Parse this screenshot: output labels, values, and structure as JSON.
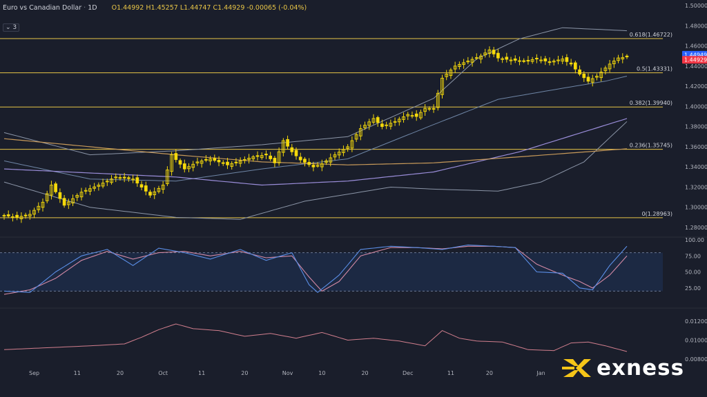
{
  "header": {
    "title": "Euro vs Canadian Dollar",
    "separator": "·",
    "timeframe": "1D",
    "open": "O1.44992",
    "high": "H1.45257",
    "low": "L1.44747",
    "close": "C1.44929",
    "change": "-0.00065 (-0.04%)",
    "indicator_toggle": "3"
  },
  "brand": {
    "name": "exness",
    "color": "#f5c518"
  },
  "colors": {
    "candle": "#f5d90a",
    "fib": "#e8c547",
    "bb": "#8c96a8",
    "ma_purple": "#9a8dd9",
    "ma_orange": "#c89a5a",
    "ma_slow": "#6f86a6",
    "stoch_k": "#5b8ee6",
    "stoch_d": "#d48aa5",
    "atr": "#d27f8e",
    "price_blue": "#2962ff",
    "price_red": "#f23645"
  },
  "chart_data": [
    {
      "type": "candlestick",
      "title": "Euro vs Canadian Dollar",
      "ylim": [
        1.28,
        1.5
      ],
      "y_ticks": [
        "1.50000",
        "1.48000",
        "1.46000",
        "1.44000",
        "1.42000",
        "1.40000",
        "1.38000",
        "1.36000",
        "1.34000",
        "1.32000",
        "1.30000",
        "1.28000"
      ],
      "x_ticks": [
        "Sep",
        "11",
        "20",
        "Oct",
        "11",
        "20",
        "Nov",
        "10",
        "20",
        "Dec",
        "11",
        "20",
        "Jan"
      ],
      "price_labels": [
        {
          "value": "1.44949",
          "color": "blue"
        },
        {
          "value": "1.44929",
          "color": "red"
        }
      ],
      "fib_levels": [
        {
          "label": "0.618(1.46722)",
          "value": 1.46722
        },
        {
          "label": "0.5(1.43331)",
          "value": 1.43331
        },
        {
          "label": "0.382(1.39940)",
          "value": 1.3994
        },
        {
          "label": "0.236(1.35745)",
          "value": 1.35745
        },
        {
          "label": "0(1.28963)",
          "value": 1.28963
        }
      ],
      "close_anchors": [
        [
          0,
          1.292
        ],
        [
          3,
          1.29
        ],
        [
          6,
          1.293
        ],
        [
          9,
          1.305
        ],
        [
          11,
          1.322
        ],
        [
          14,
          1.302
        ],
        [
          18,
          1.315
        ],
        [
          22,
          1.322
        ],
        [
          26,
          1.33
        ],
        [
          30,
          1.328
        ],
        [
          34,
          1.312
        ],
        [
          37,
          1.322
        ],
        [
          39,
          1.352
        ],
        [
          42,
          1.338
        ],
        [
          45,
          1.345
        ],
        [
          48,
          1.348
        ],
        [
          52,
          1.342
        ],
        [
          55,
          1.346
        ],
        [
          58,
          1.35
        ],
        [
          61,
          1.352
        ],
        [
          63,
          1.344
        ],
        [
          65,
          1.366
        ],
        [
          67,
          1.355
        ],
        [
          69,
          1.347
        ],
        [
          72,
          1.34
        ],
        [
          74,
          1.343
        ],
        [
          77,
          1.352
        ],
        [
          80,
          1.36
        ],
        [
          83,
          1.378
        ],
        [
          86,
          1.388
        ],
        [
          88,
          1.38
        ],
        [
          91,
          1.385
        ],
        [
          94,
          1.392
        ],
        [
          96,
          1.39
        ],
        [
          98,
          1.398
        ],
        [
          100,
          1.398
        ],
        [
          102,
          1.428
        ],
        [
          105,
          1.44
        ],
        [
          108,
          1.445
        ],
        [
          111,
          1.45
        ],
        [
          113,
          1.456
        ],
        [
          115,
          1.448
        ],
        [
          118,
          1.446
        ],
        [
          121,
          1.445
        ],
        [
          124,
          1.447
        ],
        [
          127,
          1.444
        ],
        [
          130,
          1.447
        ],
        [
          132,
          1.442
        ],
        [
          134,
          1.432
        ],
        [
          136,
          1.425
        ],
        [
          138,
          1.43
        ],
        [
          141,
          1.442
        ],
        [
          143,
          1.448
        ],
        [
          145,
          1.449
        ]
      ],
      "bb_upper_anchors": [
        [
          0,
          1.374
        ],
        [
          20,
          1.352
        ],
        [
          40,
          1.356
        ],
        [
          60,
          1.362
        ],
        [
          80,
          1.37
        ],
        [
          100,
          1.408
        ],
        [
          110,
          1.447
        ],
        [
          120,
          1.467
        ],
        [
          130,
          1.478
        ],
        [
          140,
          1.476
        ],
        [
          145,
          1.475
        ]
      ],
      "bb_mid_anchors": [
        [
          0,
          1.346
        ],
        [
          20,
          1.328
        ],
        [
          40,
          1.326
        ],
        [
          60,
          1.338
        ],
        [
          80,
          1.348
        ],
        [
          100,
          1.382
        ],
        [
          115,
          1.407
        ],
        [
          130,
          1.418
        ],
        [
          140,
          1.425
        ],
        [
          145,
          1.43
        ]
      ],
      "bb_lower_anchors": [
        [
          0,
          1.325
        ],
        [
          20,
          1.3
        ],
        [
          40,
          1.29
        ],
        [
          55,
          1.288
        ],
        [
          70,
          1.306
        ],
        [
          90,
          1.32
        ],
        [
          100,
          1.318
        ],
        [
          115,
          1.316
        ],
        [
          125,
          1.325
        ],
        [
          135,
          1.345
        ],
        [
          145,
          1.385
        ]
      ],
      "ma_purple_anchors": [
        [
          0,
          1.338
        ],
        [
          20,
          1.334
        ],
        [
          40,
          1.33
        ],
        [
          60,
          1.322
        ],
        [
          80,
          1.326
        ],
        [
          100,
          1.335
        ],
        [
          120,
          1.355
        ],
        [
          145,
          1.388
        ]
      ],
      "ma_orange_anchors": [
        [
          0,
          1.368
        ],
        [
          20,
          1.36
        ],
        [
          40,
          1.352
        ],
        [
          60,
          1.345
        ],
        [
          80,
          1.342
        ],
        [
          100,
          1.344
        ],
        [
          120,
          1.35
        ],
        [
          145,
          1.358
        ]
      ]
    },
    {
      "type": "line",
      "title": "",
      "ylim": [
        0,
        100
      ],
      "y_ticks": [
        "100.00",
        "75.00",
        "50.00",
        "25.00"
      ],
      "band": [
        20,
        80
      ],
      "series": [
        {
          "key": "k",
          "values_anchors": [
            [
              0,
              20
            ],
            [
              6,
              18
            ],
            [
              12,
              50
            ],
            [
              18,
              75
            ],
            [
              24,
              85
            ],
            [
              30,
              60
            ],
            [
              36,
              87
            ],
            [
              42,
              80
            ],
            [
              48,
              70
            ],
            [
              55,
              85
            ],
            [
              61,
              68
            ],
            [
              67,
              80
            ],
            [
              71,
              30
            ],
            [
              73,
              18
            ],
            [
              78,
              45
            ],
            [
              83,
              85
            ],
            [
              90,
              90
            ],
            [
              96,
              88
            ],
            [
              102,
              85
            ],
            [
              108,
              92
            ],
            [
              114,
              90
            ],
            [
              119,
              88
            ],
            [
              124,
              50
            ],
            [
              130,
              48
            ],
            [
              134,
              25
            ],
            [
              137,
              22
            ],
            [
              141,
              60
            ],
            [
              145,
              90
            ]
          ]
        },
        {
          "key": "d",
          "values_anchors": [
            [
              0,
              15
            ],
            [
              6,
              22
            ],
            [
              12,
              40
            ],
            [
              18,
              68
            ],
            [
              24,
              82
            ],
            [
              30,
              70
            ],
            [
              36,
              80
            ],
            [
              42,
              82
            ],
            [
              48,
              75
            ],
            [
              55,
              82
            ],
            [
              61,
              72
            ],
            [
              67,
              75
            ],
            [
              71,
              42
            ],
            [
              74,
              20
            ],
            [
              78,
              35
            ],
            [
              83,
              75
            ],
            [
              90,
              88
            ],
            [
              96,
              88
            ],
            [
              102,
              86
            ],
            [
              108,
              90
            ],
            [
              114,
              90
            ],
            [
              119,
              88
            ],
            [
              124,
              62
            ],
            [
              130,
              45
            ],
            [
              134,
              35
            ],
            [
              137,
              25
            ],
            [
              141,
              45
            ],
            [
              145,
              75
            ]
          ]
        }
      ]
    },
    {
      "type": "line",
      "title": "",
      "ylim": [
        0.0075,
        0.013
      ],
      "y_ticks": [
        "0.01200",
        "0.01000",
        "0.00800"
      ],
      "series": [
        {
          "key": "atr",
          "values_anchors": [
            [
              0,
              0.009
            ],
            [
              10,
              0.0092
            ],
            [
              20,
              0.0094
            ],
            [
              28,
              0.0096
            ],
            [
              32,
              0.0103
            ],
            [
              36,
              0.0111
            ],
            [
              40,
              0.0117
            ],
            [
              44,
              0.0112
            ],
            [
              50,
              0.011
            ],
            [
              56,
              0.0104
            ],
            [
              62,
              0.0107
            ],
            [
              68,
              0.0102
            ],
            [
              74,
              0.0108
            ],
            [
              80,
              0.01
            ],
            [
              86,
              0.0102
            ],
            [
              92,
              0.0099
            ],
            [
              98,
              0.0094
            ],
            [
              102,
              0.011
            ],
            [
              106,
              0.0102
            ],
            [
              110,
              0.0099
            ],
            [
              116,
              0.0098
            ],
            [
              122,
              0.009
            ],
            [
              128,
              0.0089
            ],
            [
              132,
              0.0097
            ],
            [
              136,
              0.0098
            ],
            [
              140,
              0.0094
            ],
            [
              145,
              0.0088
            ]
          ]
        }
      ]
    }
  ]
}
